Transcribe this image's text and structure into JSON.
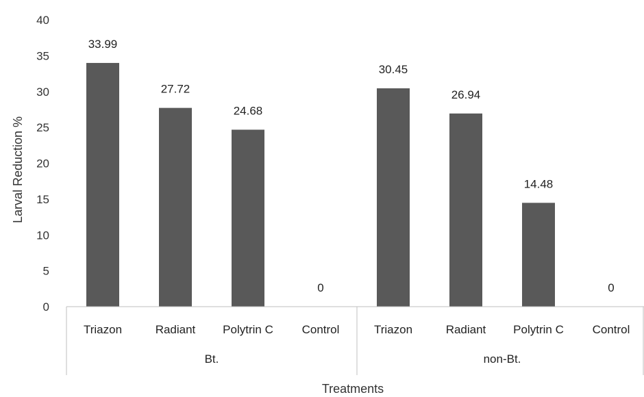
{
  "chart_data": {
    "type": "bar",
    "groups": [
      {
        "label": "Bt.",
        "categories": [
          "Triazon",
          "Radiant",
          "Polytrin C",
          "Control"
        ],
        "values": [
          33.99,
          27.72,
          24.68,
          0
        ],
        "data_labels": [
          "33.99",
          "27.72",
          "24.68",
          "0"
        ]
      },
      {
        "label": "non-Bt.",
        "categories": [
          "Triazon",
          "Radiant",
          "Polytrin C",
          "Control"
        ],
        "values": [
          30.45,
          26.94,
          14.48,
          0
        ],
        "data_labels": [
          "30.45",
          "26.94",
          "14.48",
          "0"
        ]
      }
    ],
    "xlabel": "Treatments",
    "ylabel": "Larval Reduction %",
    "ylim": [
      0,
      40
    ],
    "yticks": [
      0,
      5,
      10,
      15,
      20,
      25,
      30,
      35,
      40
    ],
    "grid": false,
    "bar_color": "#595959"
  }
}
